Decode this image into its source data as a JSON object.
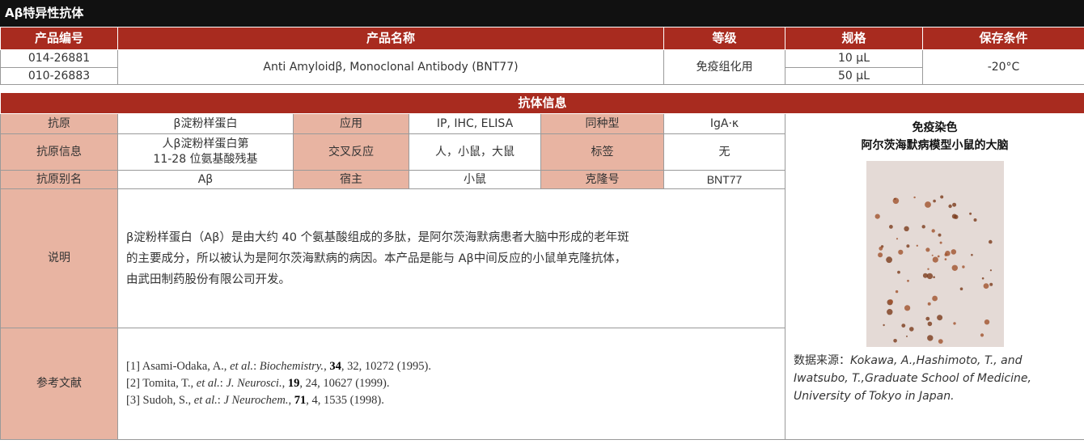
{
  "title": "Aβ特异性抗体",
  "product_table": {
    "headers": [
      "产品编号",
      "产品名称",
      "等级",
      "规格",
      "保存条件"
    ],
    "codes": [
      "014-26881",
      "010-26883"
    ],
    "name": "Anti Amyloidβ, Monoclonal Antibody (BNT77)",
    "grade": "免疫组化用",
    "sizes": [
      "10 μL",
      "50 μL"
    ],
    "storage": "-20°C"
  },
  "antibody_info": {
    "section_title": "抗体信息",
    "rows": [
      [
        {
          "label": "抗原",
          "value": "β淀粉样蛋白"
        },
        {
          "label": "应用",
          "value": "IP, IHC, ELISA"
        },
        {
          "label": "同种型",
          "value": "IgA·κ"
        }
      ],
      [
        {
          "label": "抗原信息",
          "value": [
            "人β淀粉样蛋白第",
            "11-28 位氨基酸残基"
          ]
        },
        {
          "label": "交叉反应",
          "value": "人，小鼠，大鼠"
        },
        {
          "label": "标签",
          "value": "无"
        }
      ],
      [
        {
          "label": "抗原别名",
          "value": "Aβ"
        },
        {
          "label": "宿主",
          "value": "小鼠"
        },
        {
          "label": "克隆号",
          "value": "BNT77"
        }
      ]
    ],
    "description": {
      "label": "说明",
      "lines": [
        "β淀粉样蛋白（Aβ）是由大约 40 个氨基酸组成的多肽，是阿尔茨海默病患者大脑中形成的老年斑",
        "的主要成分，所以被认为是阿尔茨海默病的病因。本产品是能与 Aβ中间反应的小鼠单克隆抗体，",
        "由武田制药股份有限公司开发。"
      ]
    },
    "references": {
      "label": "参考文献",
      "items": [
        [
          {
            "text": "[1] Asami-Odaka, A., ",
            "style": "normal"
          },
          {
            "text": "et al.",
            "style": "italic"
          },
          {
            "text": ": ",
            "style": "normal"
          },
          {
            "text": "Biochemistry.",
            "style": "italic"
          },
          {
            "text": ", ",
            "style": "normal"
          },
          {
            "text": "34",
            "style": "bold"
          },
          {
            "text": ", 32, 10272 (1995).",
            "style": "normal"
          }
        ],
        [
          {
            "text": "[2] Tomita, T., ",
            "style": "normal"
          },
          {
            "text": "et al.",
            "style": "italic"
          },
          {
            "text": ": ",
            "style": "normal"
          },
          {
            "text": "J. Neurosci.",
            "style": "italic"
          },
          {
            "text": ", ",
            "style": "normal"
          },
          {
            "text": "19",
            "style": "bold"
          },
          {
            "text": ", 24, 10627 (1999).",
            "style": "normal"
          }
        ],
        [
          {
            "text": "[3] Sudoh, S., ",
            "style": "normal"
          },
          {
            "text": "et al.",
            "style": "italic"
          },
          {
            "text": ": ",
            "style": "normal"
          },
          {
            "text": "J Neurochem.",
            "style": "italic"
          },
          {
            "text": ", ",
            "style": "normal"
          },
          {
            "text": "71",
            "style": "bold"
          },
          {
            "text": ", 4, 1535 (1998).",
            "style": "normal"
          }
        ]
      ]
    }
  },
  "figure": {
    "title_lines": [
      "免疫染色",
      "阿尔茨海默病模型小鼠的大脑"
    ],
    "caption_label": "数据来源：",
    "caption_text": "Kokawa, A.,Hashimoto, T., and Iwatsubo, T.,Graduate School of Medicine, University of Tokyo in Japan."
  }
}
